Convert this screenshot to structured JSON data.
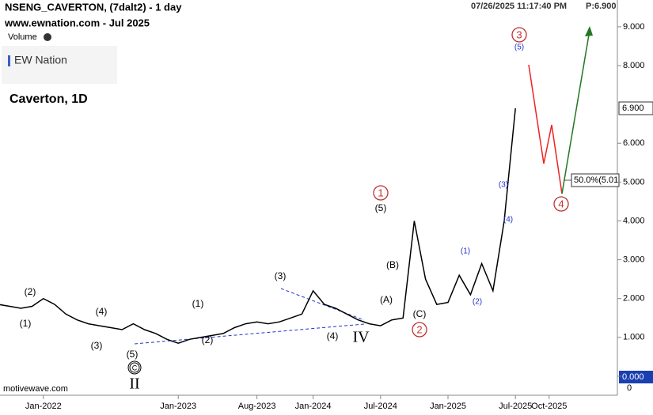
{
  "header": {
    "title": "NSENG_CAVERTON, (7dalt2) - 1 day",
    "source": "www.ewnation.com  - Jul 2025",
    "volume": "Volume",
    "logo": "EW Nation",
    "timestamp": "07/26/2025 11:17:40 PM",
    "price": "P:6.900",
    "footer": "motivewave.com"
  },
  "chart_data": {
    "type": "line",
    "title": "Caverton, 1D",
    "categories": [
      null,
      null,
      null,
      null,
      "Jan-2022",
      null,
      null,
      null,
      null,
      null,
      null,
      null,
      null,
      null,
      null,
      null,
      "Jan-2023",
      null,
      null,
      null,
      null,
      null,
      null,
      "Aug-2023",
      null,
      null,
      null,
      null,
      "Jan-2024",
      null,
      null,
      null,
      null,
      null,
      "Jul-2024",
      null,
      null,
      null,
      null,
      null,
      "Jan-2025",
      null,
      null,
      null,
      null,
      null,
      "Jul-2025",
      null,
      null,
      "Oct-2025",
      null
    ],
    "values": [
      1.85,
      1.8,
      1.75,
      1.8,
      2.0,
      1.85,
      1.6,
      1.45,
      1.35,
      1.3,
      1.25,
      1.2,
      1.35,
      1.2,
      1.1,
      0.95,
      0.85,
      0.95,
      1.0,
      1.05,
      1.1,
      1.25,
      1.35,
      1.4,
      1.35,
      1.4,
      1.5,
      1.6,
      2.2,
      1.85,
      1.75,
      1.6,
      1.45,
      1.35,
      1.3,
      1.45,
      1.5,
      4.0,
      2.5,
      1.85,
      1.9,
      2.6,
      2.1,
      2.9,
      2.2,
      4.0,
      6.9,
      null,
      null,
      null,
      null
    ],
    "color": "#000000",
    "ylim": [
      -0.49,
      9.69
    ],
    "yticks": [
      0,
      {
        "value": 1,
        "label": "1.000"
      },
      {
        "value": 2,
        "label": "2.000"
      },
      {
        "value": 3,
        "label": "3.000"
      },
      {
        "value": 4,
        "label": "4.000"
      },
      {
        "value": 5,
        "label": "5.000"
      },
      {
        "value": 6,
        "label": "6.000"
      },
      {
        "value": 8,
        "label": "8.000"
      },
      {
        "value": 9,
        "label": "9.000"
      }
    ],
    "price_tag": "6.900",
    "fib_label": "50.0%(5.01",
    "volume_tag": "0.000",
    "annotations": [
      "(2)",
      "(1)",
      "(4)",
      "(3)",
      "(5)",
      "C",
      "II",
      "(1)",
      "(2)",
      "(3)",
      "(4)",
      "IV",
      "(5)",
      "1",
      "(A)",
      "(B)",
      "(C)",
      "2",
      "(1)",
      "(2)",
      "(3)",
      "(4)",
      "(5)",
      "3",
      "4"
    ]
  }
}
